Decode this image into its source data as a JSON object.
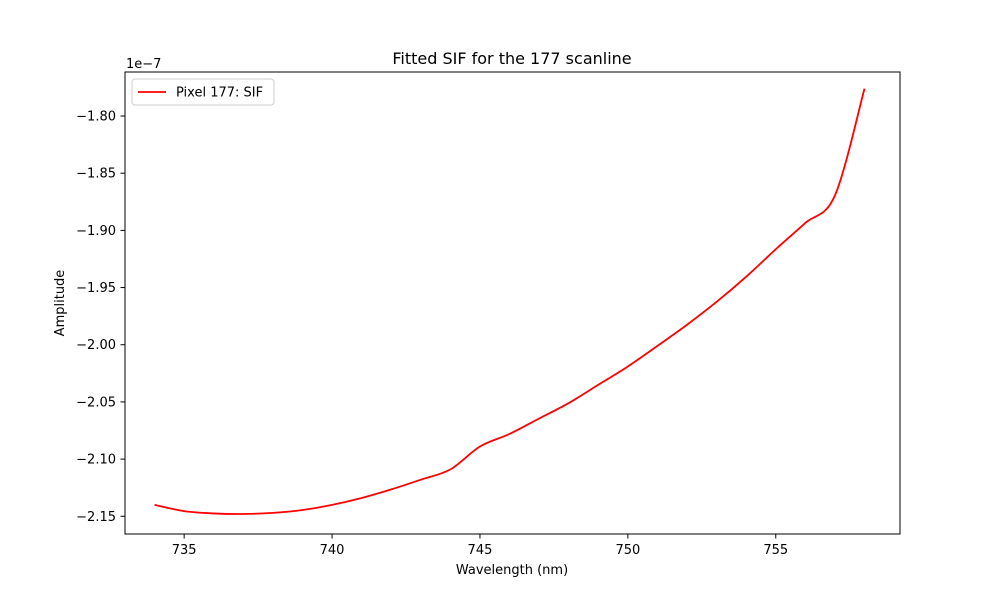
{
  "chart_data": {
    "type": "line",
    "title": "Fitted SIF for the 177 scanline",
    "xlabel": "Wavelength (nm)",
    "ylabel": "Amplitude",
    "y_offset_label": "1e−7",
    "xlim": [
      733.0,
      759.2
    ],
    "ylim": [
      -2.1655,
      -1.7615
    ],
    "x_ticks": [
      735,
      740,
      745,
      750,
      755
    ],
    "x_tick_labels": [
      "735",
      "740",
      "745",
      "750",
      "755"
    ],
    "y_ticks": [
      -2.15,
      -2.1,
      -2.05,
      -2.0,
      -1.95,
      -1.9,
      -1.85,
      -1.8
    ],
    "y_tick_labels": [
      "−2.15",
      "−2.10",
      "−2.05",
      "−2.00",
      "−1.95",
      "−1.90",
      "−1.85",
      "−1.80"
    ],
    "grid": false,
    "legend": {
      "position": "upper-left"
    },
    "series": [
      {
        "name": "Pixel 177: SIF",
        "color": "#ff0000",
        "x": [
          734,
          735,
          736,
          737,
          738,
          739,
          740,
          741,
          742,
          743,
          744,
          745,
          746,
          747,
          748,
          749,
          750,
          751,
          752,
          753,
          754,
          755,
          756,
          757,
          758
        ],
        "y": [
          -2.14,
          -2.1455,
          -2.1475,
          -2.148,
          -2.147,
          -2.1445,
          -2.14,
          -2.134,
          -2.1265,
          -2.118,
          -2.109,
          -2.089,
          -2.078,
          -2.0645,
          -2.051,
          -2.035,
          -2.019,
          -2.001,
          -1.9825,
          -1.9625,
          -1.9405,
          -1.9165,
          -1.8935,
          -1.8695,
          -1.776
        ]
      }
    ]
  }
}
